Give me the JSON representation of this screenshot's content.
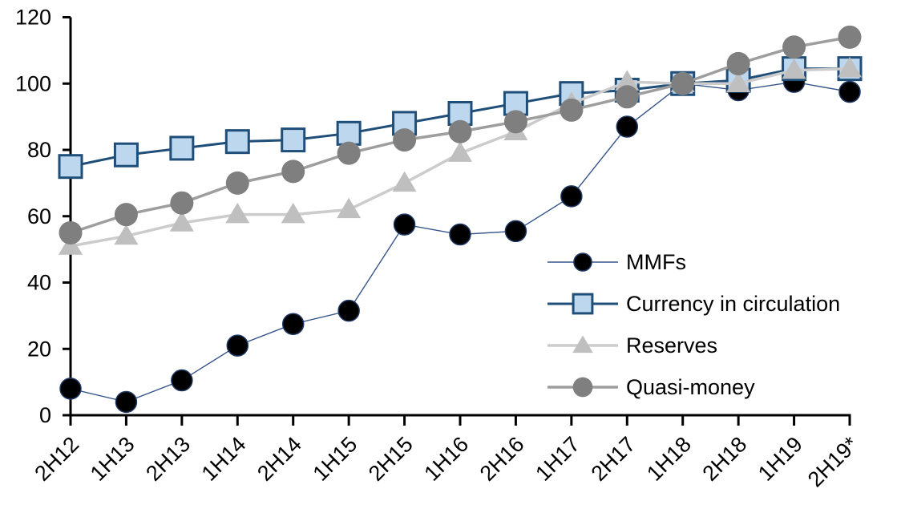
{
  "chart_data": {
    "type": "line",
    "title": "",
    "xlabel": "",
    "ylabel": "",
    "grid": false,
    "background": "#ffffff",
    "axis_color": "#000000",
    "ylim": [
      0,
      120
    ],
    "y_ticks": [
      "0",
      "20",
      "40",
      "60",
      "80",
      "100",
      "120"
    ],
    "y_tick_values": [
      0,
      20,
      40,
      60,
      80,
      100,
      120
    ],
    "categories": [
      "2H12",
      "1H13",
      "2H13",
      "1H14",
      "2H14",
      "1H15",
      "2H15",
      "1H16",
      "2H16",
      "1H17",
      "2H17",
      "1H18",
      "2H18",
      "1H19",
      "2H19*"
    ],
    "legend_position": "inside-right-middle",
    "series": [
      {
        "name": "MMFs",
        "marker": "circle",
        "line_color": "#35558A",
        "line_width": 1.4,
        "marker_fill": "#000000",
        "marker_stroke": "#1F3864",
        "marker_stroke_width": 1.5,
        "marker_size": 13,
        "values": [
          8,
          4,
          10.5,
          21,
          27.5,
          31.5,
          57.5,
          54.5,
          55.5,
          66,
          87,
          100,
          98,
          100.5,
          97.5
        ]
      },
      {
        "name": "Currency in circulation",
        "marker": "square",
        "line_color": "#1F4E79",
        "line_width": 3,
        "marker_fill": "#BDD7EE",
        "marker_stroke": "#1F4E79",
        "marker_stroke_width": 3,
        "marker_size": 14,
        "values": [
          75,
          78.5,
          80.5,
          82.5,
          83,
          85,
          88,
          91,
          94,
          97,
          98,
          100,
          101,
          104.5,
          104.5
        ]
      },
      {
        "name": "Reserves",
        "marker": "triangle",
        "line_color": "#CCCCCC",
        "line_width": 3.5,
        "marker_fill": "#BFBFBF",
        "marker_stroke": "#BFBFBF",
        "marker_stroke_width": 0,
        "marker_size": 15,
        "values": [
          51,
          54,
          58,
          60.5,
          60.5,
          62,
          70,
          79,
          85.5,
          94,
          100.5,
          100,
          100,
          104,
          104.5
        ]
      },
      {
        "name": "Quasi-money",
        "marker": "circle",
        "line_color": "#9E9E9E",
        "line_width": 3.5,
        "marker_fill": "#7F7F7F",
        "marker_stroke": "#7F7F7F",
        "marker_stroke_width": 0,
        "marker_size": 14.5,
        "values": [
          55,
          60.5,
          64,
          70,
          73.5,
          79,
          83,
          85.5,
          88.5,
          92,
          96,
          100,
          106,
          111,
          114
        ]
      }
    ]
  }
}
